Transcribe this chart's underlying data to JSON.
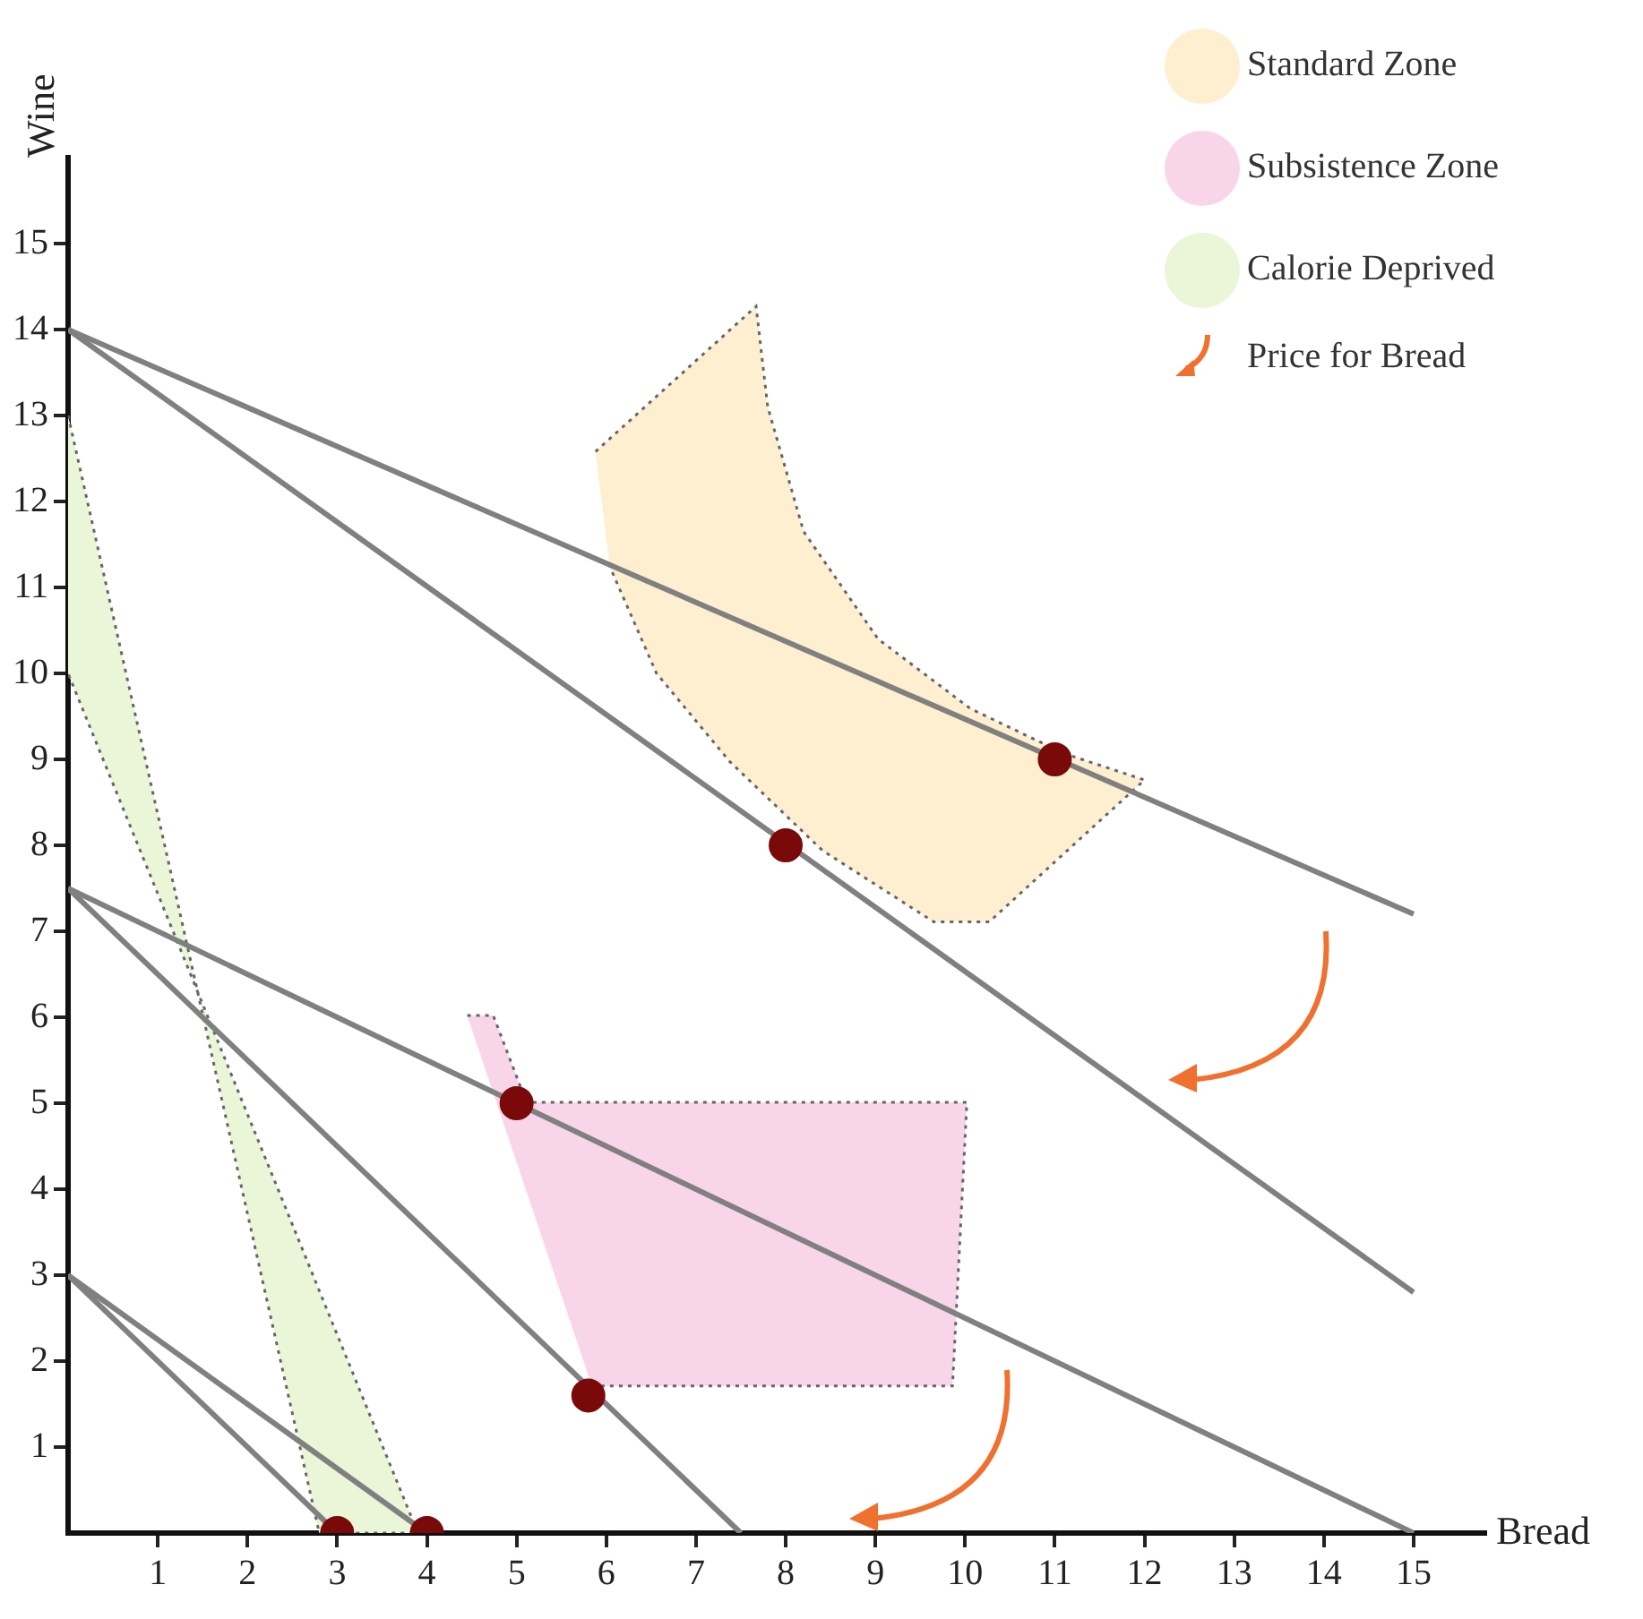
{
  "chart_data": {
    "type": "line",
    "xlabel": "Bread",
    "ylabel": "Wine",
    "xlim": [
      0,
      15.8
    ],
    "ylim": [
      0,
      16
    ],
    "xticks": [
      1,
      2,
      3,
      4,
      5,
      6,
      7,
      8,
      9,
      10,
      11,
      12,
      13,
      14,
      15
    ],
    "yticks": [
      1,
      2,
      3,
      4,
      5,
      6,
      7,
      8,
      9,
      10,
      11,
      12,
      13,
      14,
      15
    ],
    "grid": false,
    "legend": "top right",
    "annotations": [
      "Price for Bread"
    ],
    "series": [
      {
        "name": "Standard Zone",
        "type": "area",
        "color": "#fdefcf",
        "line_style": "dotted",
        "x": [
          5.88,
          7.67,
          7.8,
          8.2,
          9.03,
          10.06,
          11.1,
          12.0,
          10.27,
          9.65,
          8.41,
          7.38,
          6.56,
          6.04
        ],
        "values": [
          12.58,
          14.27,
          13.1,
          11.65,
          10.4,
          9.59,
          9.07,
          8.76,
          7.11,
          7.11,
          7.94,
          8.97,
          10.0,
          11.24
        ]
      },
      {
        "name": "Subsistence Zone",
        "type": "area",
        "color": "#f9d5e9",
        "line_style": "dotted",
        "x": [
          4.45,
          4.74,
          5.11,
          10.02,
          9.86,
          5.84
        ],
        "values": [
          6.02,
          6.02,
          5.01,
          5.01,
          1.71,
          1.71
        ]
      },
      {
        "name": "Calorie Deprived",
        "type": "area",
        "color": "#ebf5d7",
        "line_style": "dotted",
        "x": [
          0,
          2.8,
          3.9,
          0
        ],
        "values": [
          13,
          0,
          0,
          10
        ]
      },
      {
        "type": "line",
        "color": "#808080",
        "x": [
          0,
          15
        ],
        "values": [
          14,
          7.2
        ]
      },
      {
        "type": "line",
        "color": "#808080",
        "x": [
          0,
          15
        ],
        "values": [
          14,
          2.8
        ]
      },
      {
        "type": "line",
        "color": "#808080",
        "x": [
          0,
          15
        ],
        "values": [
          7.5,
          0
        ]
      },
      {
        "type": "line",
        "color": "#808080",
        "x": [
          0,
          7.5
        ],
        "values": [
          7.5,
          0
        ]
      },
      {
        "type": "line",
        "color": "#808080",
        "x": [
          0,
          4
        ],
        "values": [
          3,
          0
        ]
      },
      {
        "type": "line",
        "color": "#808080",
        "x": [
          0,
          3
        ],
        "values": [
          3,
          0
        ]
      },
      {
        "type": "scatter",
        "color": "#7a0a0a",
        "marker": "circle",
        "x": [
          3,
          4,
          5,
          5.8,
          8,
          11
        ],
        "values": [
          0,
          0,
          5,
          1.6,
          8,
          9
        ]
      }
    ]
  }
}
